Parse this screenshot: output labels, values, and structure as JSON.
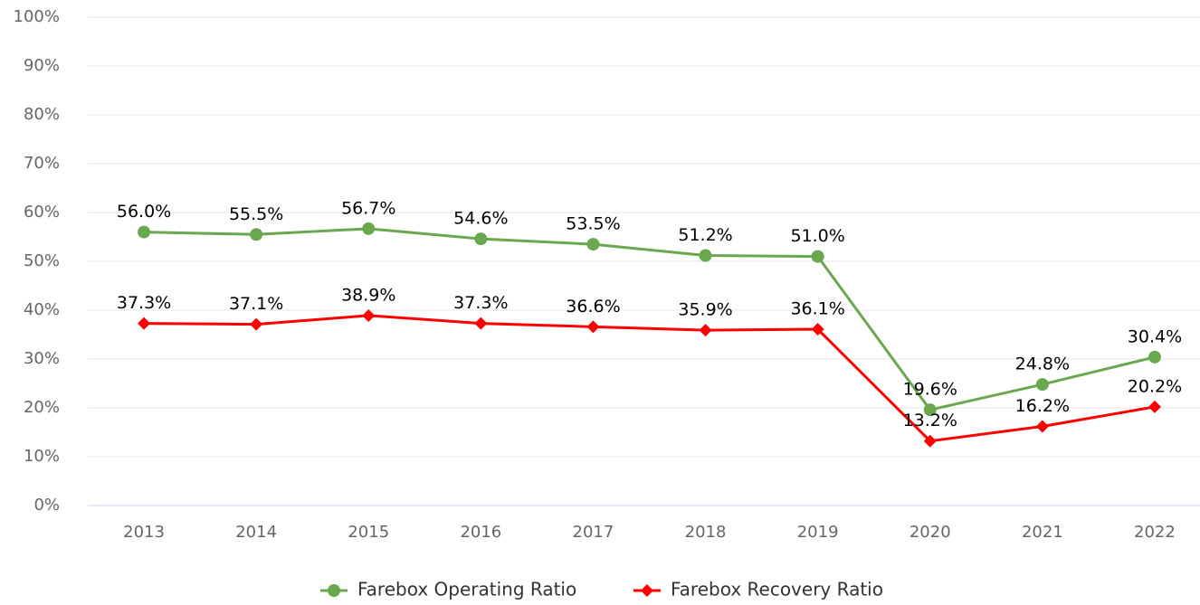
{
  "chart_data": {
    "type": "line",
    "categories": [
      "2013",
      "2014",
      "2015",
      "2016",
      "2017",
      "2018",
      "2019",
      "2020",
      "2021",
      "2022"
    ],
    "series": [
      {
        "name": "Farebox Operating Ratio",
        "color": "#6aa84f",
        "marker": "circle",
        "values": [
          56.0,
          55.5,
          56.7,
          54.6,
          53.5,
          51.2,
          51.0,
          19.6,
          24.8,
          30.4
        ],
        "value_labels": [
          "56.0%",
          "55.5%",
          "56.7%",
          "54.6%",
          "53.5%",
          "51.2%",
          "51.0%",
          "19.6%",
          "24.8%",
          "30.4%"
        ]
      },
      {
        "name": "Farebox Recovery Ratio",
        "color": "#ff0000",
        "marker": "diamond",
        "values": [
          37.3,
          37.1,
          38.9,
          37.3,
          36.6,
          35.9,
          36.1,
          13.2,
          16.2,
          20.2
        ],
        "value_labels": [
          "37.3%",
          "37.1%",
          "38.9%",
          "37.3%",
          "36.6%",
          "35.9%",
          "36.1%",
          "13.2%",
          "16.2%",
          "20.2%"
        ]
      }
    ],
    "ylim": [
      0,
      100
    ],
    "yticks": [
      {
        "value": 0,
        "label": "0%"
      },
      {
        "value": 10,
        "label": "10%"
      },
      {
        "value": 20,
        "label": "20%"
      },
      {
        "value": 30,
        "label": "30%"
      },
      {
        "value": 40,
        "label": "40%"
      },
      {
        "value": 50,
        "label": "50%"
      },
      {
        "value": 60,
        "label": "60%"
      },
      {
        "value": 70,
        "label": "70%"
      },
      {
        "value": 80,
        "label": "80%"
      },
      {
        "value": 90,
        "label": "90%"
      },
      {
        "value": 100,
        "label": "100%"
      }
    ],
    "grid": true,
    "legend": "bottom"
  }
}
